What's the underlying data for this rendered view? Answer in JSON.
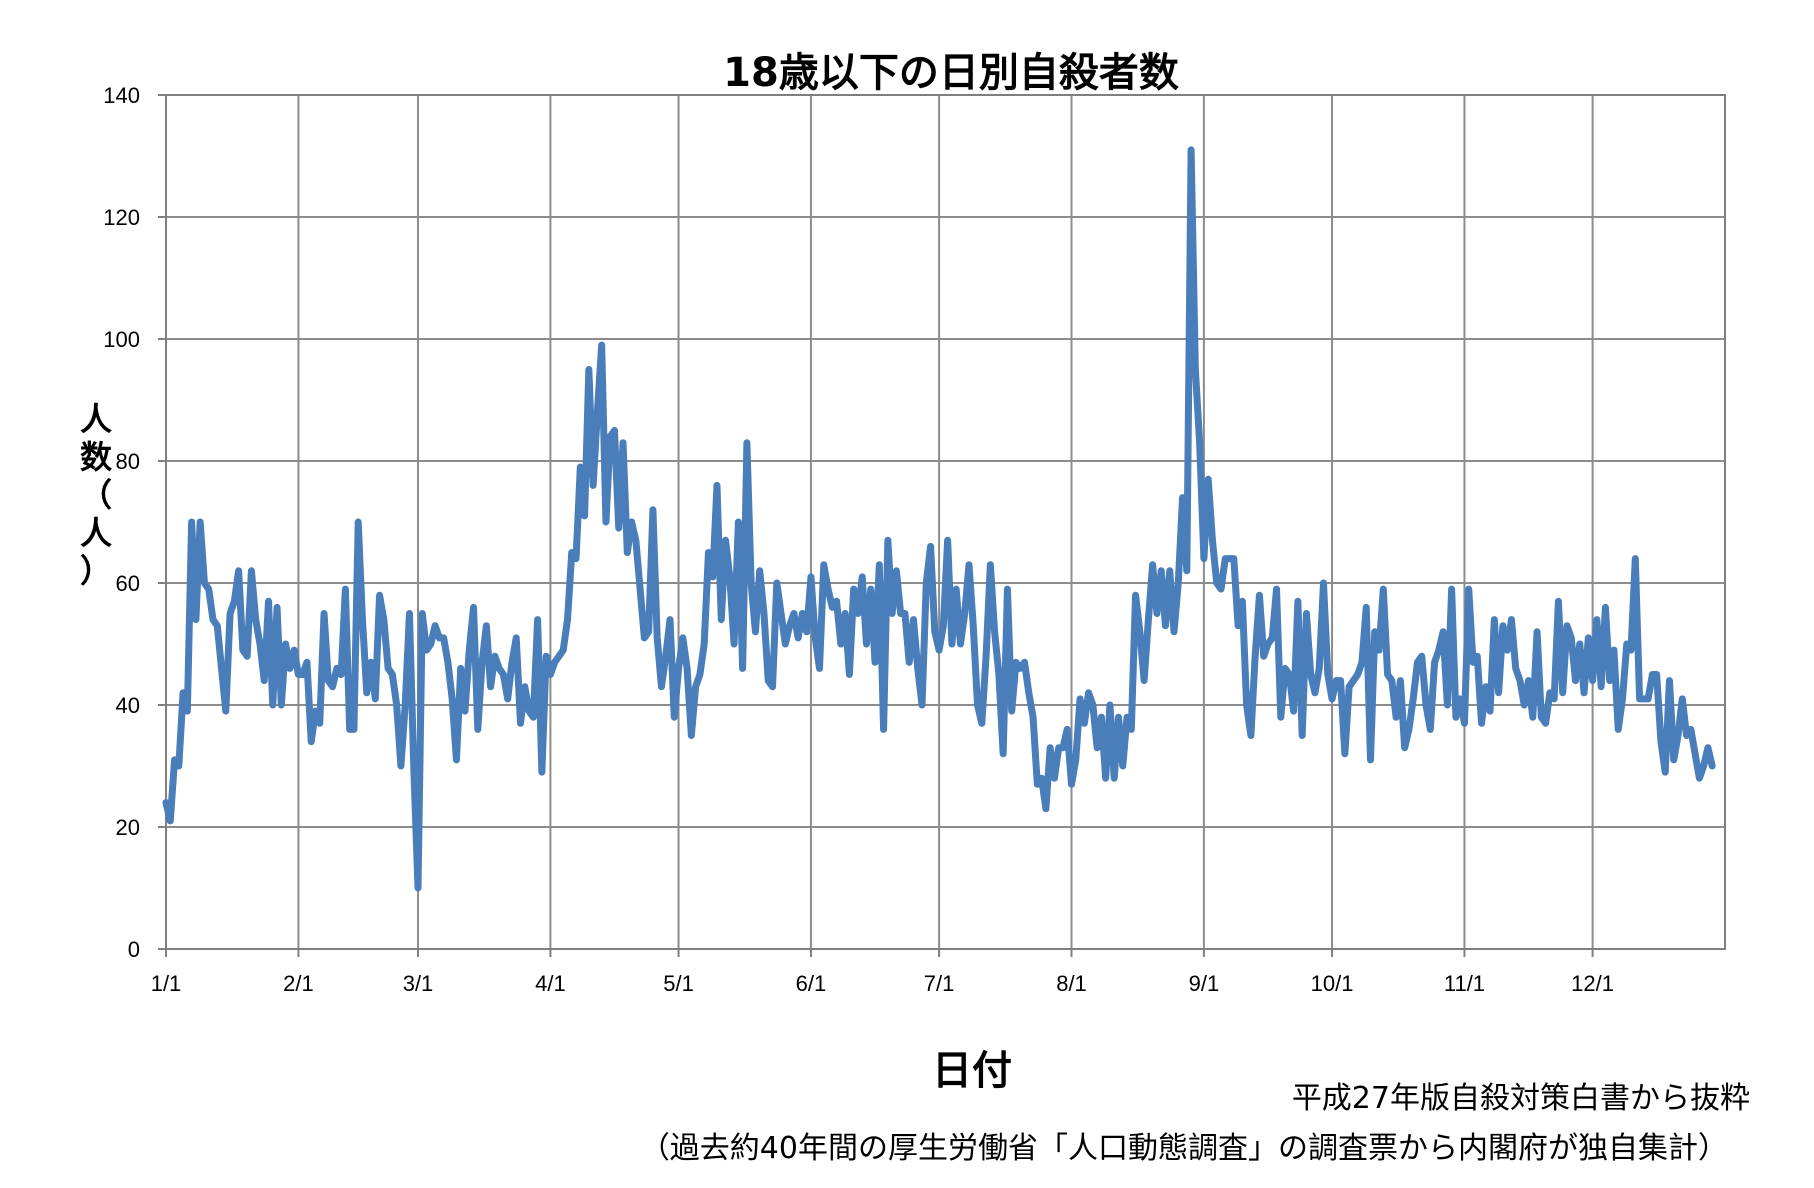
{
  "chart_data": {
    "type": "line",
    "title": "18歳以下の日別自殺者数",
    "xlabel": "日付",
    "ylabel": "人数（人）",
    "ylim": [
      0,
      140
    ],
    "y_ticks": [
      "0",
      "20",
      "40",
      "60",
      "80",
      "100",
      "120",
      "140"
    ],
    "x_ticks": [
      "1/1",
      "2/1",
      "3/1",
      "4/1",
      "5/1",
      "6/1",
      "7/1",
      "8/1",
      "9/1",
      "10/1",
      "11/1",
      "12/1"
    ],
    "x_tick_days": [
      1,
      32,
      60,
      91,
      121,
      152,
      182,
      213,
      244,
      274,
      305,
      335
    ],
    "xlim_days": [
      1,
      366
    ],
    "grid": true,
    "legend": "none",
    "line_color": "#4a7ebb",
    "series": [
      {
        "x_start_day": 1,
        "values": [
          24,
          21,
          31,
          30,
          42,
          39,
          70,
          54,
          70,
          60,
          59,
          54,
          53,
          46,
          39,
          55,
          57,
          62,
          49,
          48,
          62,
          54,
          50,
          44,
          57,
          40,
          56,
          40,
          50,
          46,
          49,
          45,
          45,
          47,
          34,
          39,
          37,
          55,
          44,
          43,
          46,
          45,
          59,
          36,
          36,
          70,
          54,
          42,
          47,
          41,
          58,
          54,
          46,
          45,
          40,
          30,
          40,
          55,
          30,
          10,
          55,
          49,
          50,
          53,
          51,
          51,
          47,
          41,
          31,
          46,
          39,
          49,
          56,
          36,
          47,
          53,
          43,
          48,
          46,
          45,
          41,
          47,
          51,
          37,
          43,
          39,
          38,
          54,
          29,
          48,
          45,
          47,
          48,
          49,
          54,
          65,
          64,
          79,
          71,
          95,
          76,
          88,
          99,
          70,
          84,
          85,
          69,
          83,
          65,
          70,
          67,
          59,
          51,
          52,
          72,
          51,
          43,
          48,
          54,
          38,
          46,
          51,
          46,
          35,
          43,
          45,
          50,
          65,
          61,
          76,
          54,
          67,
          61,
          50,
          70,
          46,
          83,
          60,
          52,
          62,
          55,
          44,
          43,
          60,
          55,
          50,
          53,
          55,
          51,
          55,
          52,
          61,
          51,
          46,
          63,
          59,
          56,
          57,
          50,
          55,
          45,
          59,
          55,
          61,
          50,
          59,
          47,
          63,
          36,
          67,
          55,
          62,
          55,
          55,
          47,
          54,
          46,
          40,
          60,
          66,
          52,
          49,
          53,
          67,
          50,
          59,
          50,
          55,
          63,
          53,
          40,
          37,
          48,
          63,
          52,
          45,
          32,
          59,
          39,
          47,
          46,
          47,
          42,
          38,
          27,
          28,
          23,
          33,
          28,
          33,
          33,
          36,
          27,
          31,
          41,
          37,
          42,
          40,
          33,
          38,
          28,
          40,
          28,
          38,
          30,
          38,
          36,
          58,
          52,
          44,
          54,
          63,
          55,
          62,
          53,
          62,
          52,
          60,
          74,
          62,
          131,
          95,
          83,
          64,
          77,
          67,
          60,
          59,
          64,
          64,
          64,
          53,
          57,
          40,
          35,
          48,
          58,
          48,
          50,
          51,
          59,
          38,
          46,
          45,
          39,
          57,
          35,
          55,
          45,
          42,
          46,
          60,
          45,
          41,
          44,
          44,
          32,
          43,
          44,
          45,
          47,
          56,
          31,
          52,
          49,
          59,
          45,
          44,
          38,
          44,
          33,
          36,
          41,
          47,
          48,
          40,
          36,
          47,
          49,
          52,
          40,
          59,
          38,
          41,
          37,
          59,
          47,
          48,
          37,
          43,
          39,
          54,
          42,
          53,
          49,
          54,
          46,
          44,
          40,
          44,
          38,
          52,
          38,
          37,
          42,
          41,
          57,
          42,
          53,
          51,
          44,
          50,
          42,
          51,
          44,
          54,
          43,
          56,
          44,
          49,
          36,
          41,
          50,
          49,
          64,
          41,
          41,
          41,
          45,
          45,
          34,
          29,
          44,
          31,
          35,
          41,
          35,
          36,
          32,
          28,
          30,
          33,
          30
        ]
      }
    ]
  },
  "notes": {
    "source": "平成27年版自殺対策白書から抜粋",
    "detail": "（過去約40年間の厚生労働省「人口動態調査」の調査票から内閣府が独自集計）"
  }
}
